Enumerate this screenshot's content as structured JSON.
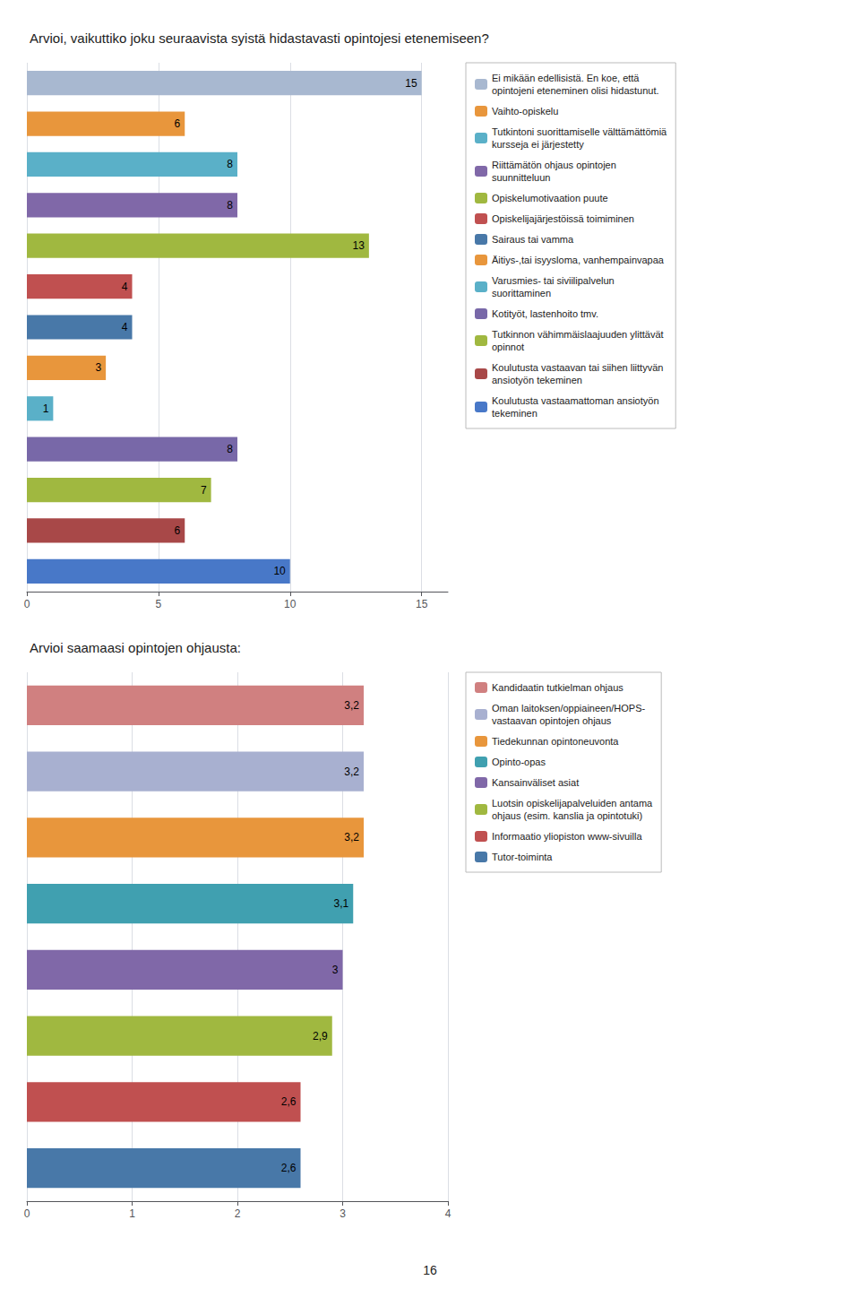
{
  "chart_data": [
    {
      "type": "bar",
      "title": "Arvioi, vaikuttiko joku seuraavista syistä hidastavasti opintojesi etenemiseen?",
      "orientation": "horizontal",
      "categories": [
        "Ei mikään edellisistä. En koe, että\nopintojeni eteneminen olisi hidastunut.",
        "Vaihto-opiskelu",
        "Tutkintoni suorittamiselle välttämättömiä\nkursseja ei järjestetty",
        "Riittämätön ohjaus opintojen\nsuunnitteluun",
        "Opiskelumotivaation puute",
        "Opiskelijajärjestöissä toimiminen",
        "Sairaus tai vamma",
        "Äitiys-,tai isyysloma, vanhempainvapaa",
        "Varusmies- tai siviilipalvelun\nsuorittaminen",
        "Kotityöt, lastenhoito tmv.",
        "Tutkinnon vähimmäislaajuuden ylittävät\nopinnot",
        "Koulutusta vastaavan tai siihen liittyvän\nansiotyön tekeminen",
        "Koulutusta vastaamattoman ansiotyön\ntekeminen"
      ],
      "values": [
        15,
        6,
        8,
        8,
        13,
        4,
        4,
        3,
        1,
        8,
        7,
        6,
        10
      ],
      "colors": [
        "#a8b8d0",
        "#e8963c",
        "#5ab0c8",
        "#8068a8",
        "#a0b840",
        "#c05050",
        "#4878a8",
        "#e8963c",
        "#5ab0c8",
        "#7868a8",
        "#a0b840",
        "#a84848",
        "#4878c8"
      ],
      "xlim": [
        0,
        16
      ],
      "xticks": [
        0,
        5,
        10,
        15
      ],
      "grid": true,
      "legend": "right",
      "data_labels": true,
      "tick_labels": "x"
    },
    {
      "type": "bar",
      "title": "Arvioi saamaasi opintojen ohjausta:",
      "orientation": "horizontal",
      "categories": [
        "Kandidaatin tutkielman ohjaus",
        "Oman laitoksen/oppiaineen/HOPS-\nvastaavan opintojen ohjaus",
        "Tiedekunnan opintoneuvonta",
        "Opinto-opas",
        "Kansainväliset asiat",
        "Luotsin opiskelijapalveluiden antama\nohjaus (esim. kanslia ja opintotuki)",
        "Informaatio yliopiston www-sivuilla",
        "Tutor-toiminta"
      ],
      "values": [
        3.2,
        3.2,
        3.2,
        3.1,
        3.0,
        2.9,
        2.6,
        2.6
      ],
      "value_labels": [
        "3,2",
        "3,2",
        "3,2",
        "3,1",
        "3",
        "2,9",
        "2,6",
        "2,6"
      ],
      "colors": [
        "#d08080",
        "#a8b0d0",
        "#e8963c",
        "#40a0b0",
        "#8068a8",
        "#a0b840",
        "#c05050",
        "#4878a8"
      ],
      "xlim": [
        0,
        4
      ],
      "xticks": [
        0,
        1,
        2,
        3,
        4
      ],
      "grid": true,
      "legend": "right",
      "data_labels": true,
      "tick_labels": "x",
      "annotations": [
        "16"
      ]
    }
  ]
}
